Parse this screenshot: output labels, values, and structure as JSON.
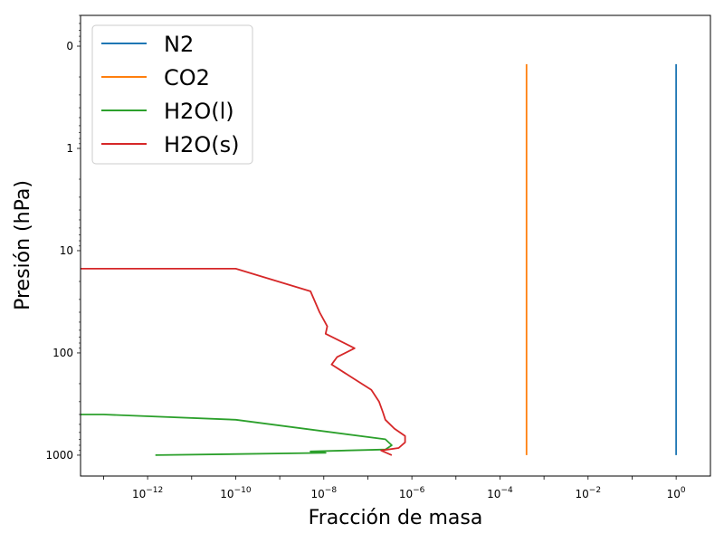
{
  "chart_data": {
    "type": "line",
    "title": "",
    "xlabel": "Fracción de masa",
    "ylabel": "Presión (hPa)",
    "x_scale": "log",
    "y_scale": "log",
    "y_inverted": true,
    "xlim": [
      3e-14,
      6.0
    ],
    "ylim": [
      1600,
      0.05
    ],
    "x_ticks": [
      {
        "value": 1e-12,
        "base": "10",
        "exp": "−12"
      },
      {
        "value": 1e-10,
        "base": "10",
        "exp": "−10"
      },
      {
        "value": 1e-08,
        "base": "10",
        "exp": "−8"
      },
      {
        "value": 1e-06,
        "base": "10",
        "exp": "−6"
      },
      {
        "value": 0.0001,
        "base": "10",
        "exp": "−4"
      },
      {
        "value": 0.01,
        "base": "10",
        "exp": "−2"
      },
      {
        "value": 1,
        "base": "10",
        "exp": "0"
      }
    ],
    "y_ticks": [
      {
        "value": 0.1,
        "label": "0"
      },
      {
        "value": 1,
        "label": "1"
      },
      {
        "value": 10,
        "label": "10"
      },
      {
        "value": 100,
        "label": "100"
      },
      {
        "value": 1000,
        "label": "1000"
      }
    ],
    "grid": false,
    "legend_position": "upper-left",
    "series": [
      {
        "name": "N2",
        "color": "#1f77b4",
        "x": [
          1.0,
          1.0
        ],
        "y": [
          0.15,
          1000
        ]
      },
      {
        "name": "CO2",
        "color": "#ff7f0e",
        "x": [
          0.0004,
          0.0004
        ],
        "y": [
          0.15,
          1000
        ]
      },
      {
        "name": "H2O(l)",
        "color": "#2ca02c",
        "x": [
          3e-14,
          1e-13,
          1e-10,
          2.5e-07,
          3.5e-07,
          2.5e-07,
          5e-09,
          1.1e-08,
          1.5e-12
        ],
        "y": [
          400,
          400,
          450,
          700,
          800,
          880,
          920,
          950,
          1000
        ]
      },
      {
        "name": "H2O(s)",
        "color": "#d62728",
        "x": [
          3e-14,
          1e-13,
          1e-10,
          1e-10,
          5e-09,
          6e-09,
          8e-09,
          1.2e-08,
          1.1e-08,
          5e-08,
          2e-08,
          1.5e-08,
          4e-08,
          1.2e-07,
          1.8e-07,
          2.2e-07,
          2.5e-07,
          4e-07,
          7e-07,
          7e-07,
          5e-07,
          2e-07,
          3.5e-07
        ],
        "y": [
          15,
          15,
          15,
          15,
          25,
          30,
          40,
          55,
          65,
          90,
          110,
          130,
          170,
          230,
          300,
          380,
          450,
          550,
          650,
          750,
          850,
          900,
          1000
        ]
      }
    ]
  }
}
